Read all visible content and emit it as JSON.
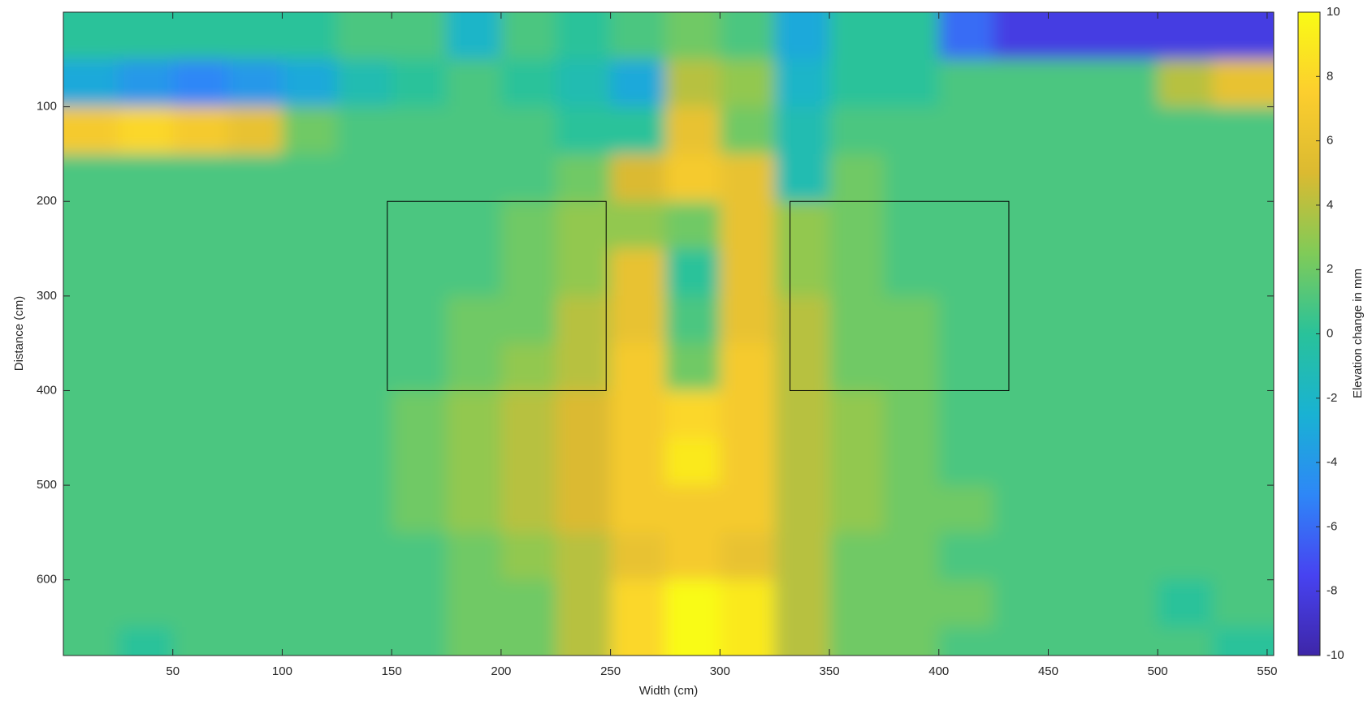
{
  "chart_data": {
    "type": "heatmap",
    "xlabel": "Width (cm)",
    "ylabel": "Distance (cm)",
    "xlim": [
      0,
      553
    ],
    "ylim": [
      0,
      680
    ],
    "y_reversed": true,
    "xticks": [
      50,
      100,
      150,
      200,
      250,
      300,
      350,
      400,
      450,
      500,
      550
    ],
    "yticks": [
      100,
      200,
      300,
      400,
      500,
      600
    ],
    "xbins": [
      0,
      25,
      50,
      75,
      100,
      125,
      150,
      175,
      200,
      225,
      250,
      275,
      300,
      325,
      350,
      375,
      400,
      425,
      450,
      475,
      500,
      525,
      553
    ],
    "ybins": [
      0,
      50,
      100,
      150,
      200,
      250,
      300,
      350,
      400,
      450,
      500,
      550,
      600,
      650,
      680
    ],
    "z": [
      [
        0,
        0,
        0,
        0,
        0,
        1,
        1,
        -2,
        1,
        0,
        1,
        2,
        1,
        -3,
        0,
        0,
        -6,
        -8,
        -8,
        -8,
        -8,
        -8
      ],
      [
        -3,
        -4,
        -5,
        -4,
        -3,
        -1,
        0,
        1,
        0,
        -1,
        -3,
        4,
        3,
        -2,
        0,
        0,
        1,
        1,
        1,
        1,
        4,
        6
      ],
      [
        7,
        8,
        7,
        6,
        2,
        1,
        1,
        1,
        1,
        0,
        0,
        6,
        2,
        -1,
        1,
        1,
        1,
        1,
        1,
        1,
        1,
        1
      ],
      [
        1,
        1,
        1,
        1,
        1,
        1,
        1,
        1,
        1,
        2,
        5,
        7,
        6,
        -1,
        2,
        1,
        1,
        1,
        1,
        1,
        1,
        1
      ],
      [
        1,
        1,
        1,
        1,
        1,
        1,
        1,
        1,
        2,
        3,
        3,
        2,
        6,
        3,
        2,
        1,
        1,
        1,
        1,
        1,
        1,
        1
      ],
      [
        1,
        1,
        1,
        1,
        1,
        1,
        1,
        1,
        2,
        3,
        6,
        0,
        6,
        3,
        2,
        1,
        1,
        1,
        1,
        1,
        1,
        1
      ],
      [
        1,
        1,
        1,
        1,
        1,
        1,
        1,
        2,
        2,
        4,
        6,
        1,
        6,
        4,
        2,
        2,
        1,
        1,
        1,
        1,
        1,
        1
      ],
      [
        1,
        1,
        1,
        1,
        1,
        1,
        1,
        2,
        3,
        4,
        7,
        2,
        7,
        4,
        2,
        2,
        1,
        1,
        1,
        1,
        1,
        1
      ],
      [
        1,
        1,
        1,
        1,
        1,
        1,
        2,
        3,
        4,
        5,
        7,
        8,
        7,
        4,
        3,
        2,
        1,
        1,
        1,
        1,
        1,
        1
      ],
      [
        1,
        1,
        1,
        1,
        1,
        1,
        2,
        3,
        4,
        5,
        7,
        9,
        7,
        4,
        3,
        2,
        1,
        1,
        1,
        1,
        1,
        1
      ],
      [
        1,
        1,
        1,
        1,
        1,
        1,
        2,
        3,
        4,
        5,
        7,
        7,
        7,
        4,
        3,
        2,
        2,
        1,
        1,
        1,
        1,
        1
      ],
      [
        1,
        1,
        1,
        1,
        1,
        1,
        1,
        2,
        3,
        4,
        6,
        7,
        6,
        4,
        2,
        2,
        1,
        1,
        1,
        1,
        1,
        1
      ],
      [
        1,
        1,
        1,
        1,
        1,
        1,
        1,
        2,
        2,
        4,
        8,
        10,
        9,
        4,
        2,
        2,
        2,
        1,
        1,
        1,
        0,
        1
      ],
      [
        1,
        0,
        1,
        1,
        1,
        1,
        1,
        2,
        2,
        4,
        8,
        10,
        9,
        4,
        2,
        2,
        1,
        1,
        1,
        1,
        1,
        0
      ]
    ],
    "colormap": [
      "#3e26a8",
      "#4743f1",
      "#2e87f7",
      "#19b2d3",
      "#29c29a",
      "#80cb58",
      "#dbba31",
      "#fcce2e",
      "#f9fb15"
    ],
    "colorbar": {
      "label": "Elevation change in mm",
      "clim": [
        -10,
        10
      ],
      "ticks": [
        -10,
        -8,
        -6,
        -4,
        -2,
        0,
        2,
        4,
        6,
        8,
        10
      ]
    },
    "boxes": [
      {
        "x0": 148,
        "x1": 248,
        "y0": 200,
        "y1": 400
      },
      {
        "x0": 332,
        "x1": 432,
        "y0": 200,
        "y1": 400
      }
    ]
  }
}
